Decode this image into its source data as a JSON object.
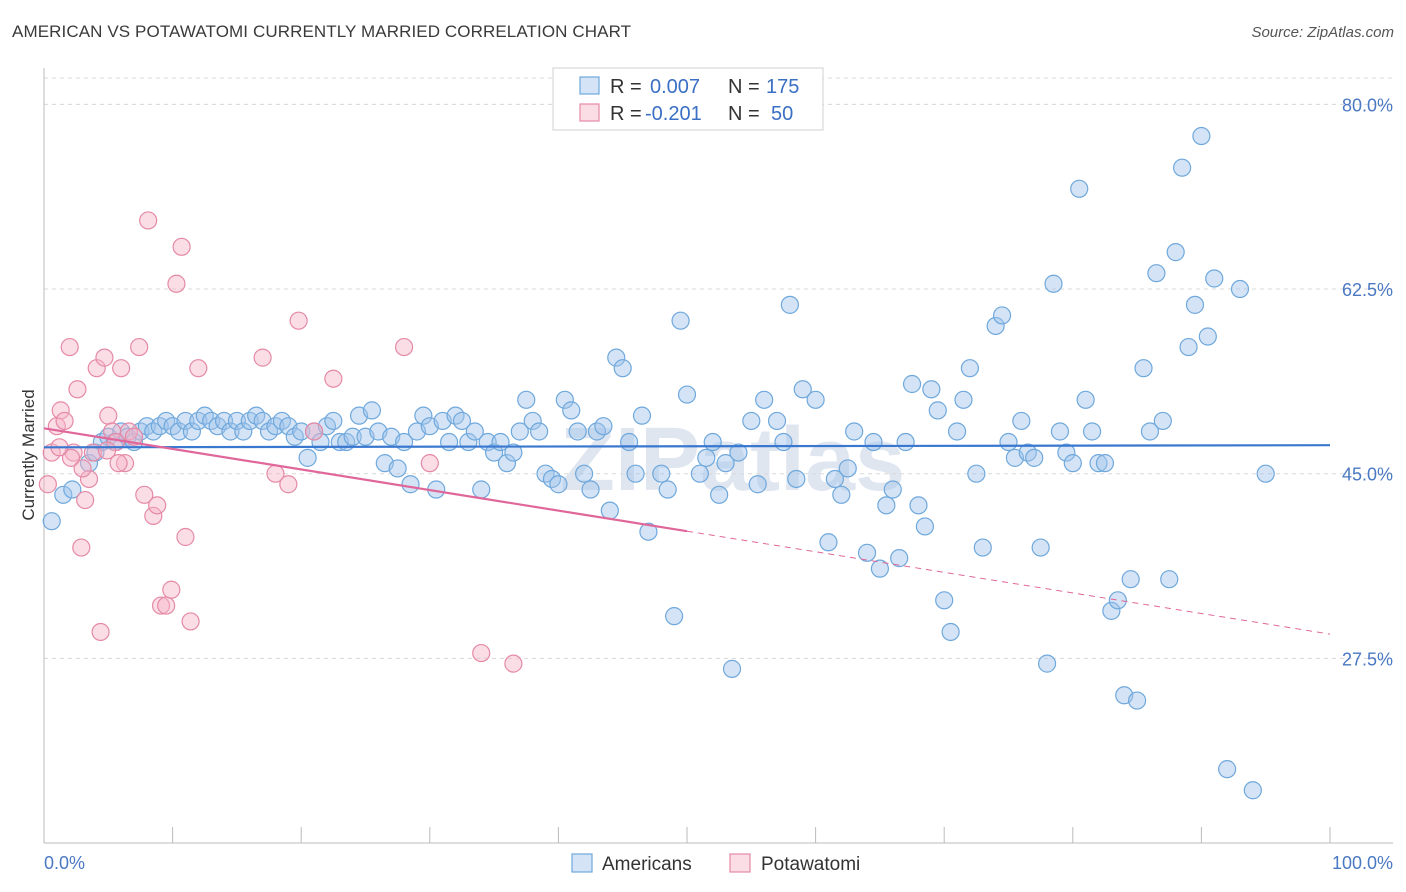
{
  "title": "AMERICAN VS POTAWATOMI CURRENTLY MARRIED CORRELATION CHART",
  "source": "Source: ZipAtlas.com",
  "watermark": "ZIPatlas",
  "colors": {
    "americans": "#6fa8dc",
    "americans_fill": "rgba(160,196,236,0.45)",
    "americans_line": "#3a78d0",
    "potawatomi": "#e58aa6",
    "potawatomi_fill": "rgba(246,180,200,0.45)",
    "potawatomi_line": "#e0679a",
    "tick_text": "#4a78c2",
    "grid": "#d8d8d8"
  },
  "legend": {
    "rows": [
      {
        "r_label": "R =",
        "r_value": "0.007",
        "n_label": "N =",
        "n_value": "175"
      },
      {
        "r_label": "R =",
        "r_value": "-0.201",
        "n_label": "N =",
        "n_value": "50"
      }
    ]
  },
  "bottom_legend": [
    "Americans",
    "Potawatomi"
  ],
  "chart_data": {
    "type": "scatter",
    "title": "AMERICAN VS POTAWATOMI CURRENTLY MARRIED CORRELATION CHART",
    "xlabel": "",
    "ylabel": "Currently Married",
    "xlim": [
      0,
      100
    ],
    "ylim": [
      10,
      82.5
    ],
    "x_tick_labels": [
      "0.0%",
      "100.0%"
    ],
    "y_ticks": [
      27.5,
      45.0,
      62.5,
      80.0
    ],
    "y_tick_labels": [
      "27.5%",
      "45.0%",
      "62.5%",
      "80.0%"
    ],
    "grid": true,
    "legend_position": "top-center",
    "series": [
      {
        "name": "Americans",
        "R": 0.007,
        "N": 175,
        "trend": {
          "x": [
            0,
            100
          ],
          "y": [
            47.5,
            47.7
          ]
        },
        "points": [
          [
            0.6,
            40.5
          ],
          [
            1.5,
            43
          ],
          [
            2.2,
            43.5
          ],
          [
            3.5,
            46
          ],
          [
            4,
            47
          ],
          [
            4.5,
            48
          ],
          [
            5,
            48.5
          ],
          [
            5.5,
            48
          ],
          [
            6,
            49
          ],
          [
            6.5,
            48.5
          ],
          [
            7,
            48
          ],
          [
            7.5,
            49
          ],
          [
            8,
            49.5
          ],
          [
            8.5,
            49
          ],
          [
            9,
            49.5
          ],
          [
            9.5,
            50
          ],
          [
            10,
            49.5
          ],
          [
            10.5,
            49
          ],
          [
            11,
            50
          ],
          [
            11.5,
            49
          ],
          [
            12,
            50
          ],
          [
            12.5,
            50.5
          ],
          [
            13,
            50
          ],
          [
            13.5,
            49.5
          ],
          [
            14,
            50
          ],
          [
            14.5,
            49
          ],
          [
            15,
            50
          ],
          [
            15.5,
            49
          ],
          [
            16,
            50
          ],
          [
            16.5,
            50.5
          ],
          [
            17,
            50
          ],
          [
            17.5,
            49
          ],
          [
            18,
            49.5
          ],
          [
            18.5,
            50
          ],
          [
            19,
            49.5
          ],
          [
            19.5,
            48.5
          ],
          [
            20,
            49
          ],
          [
            20.5,
            46.5
          ],
          [
            21,
            49
          ],
          [
            21.5,
            48
          ],
          [
            22,
            49.5
          ],
          [
            22.5,
            50
          ],
          [
            23,
            48
          ],
          [
            23.5,
            48
          ],
          [
            24,
            48.5
          ],
          [
            24.5,
            50.5
          ],
          [
            25,
            48.5
          ],
          [
            25.5,
            51
          ],
          [
            26,
            49
          ],
          [
            26.5,
            46
          ],
          [
            27,
            48.5
          ],
          [
            27.5,
            45.5
          ],
          [
            28,
            48
          ],
          [
            28.5,
            44
          ],
          [
            29,
            49
          ],
          [
            29.5,
            50.5
          ],
          [
            30,
            49.5
          ],
          [
            30.5,
            43.5
          ],
          [
            31,
            50
          ],
          [
            31.5,
            48
          ],
          [
            32,
            50.5
          ],
          [
            32.5,
            50
          ],
          [
            33,
            48
          ],
          [
            33.5,
            49
          ],
          [
            34,
            43.5
          ],
          [
            34.5,
            48
          ],
          [
            35,
            47
          ],
          [
            35.5,
            48
          ],
          [
            36,
            46
          ],
          [
            36.5,
            47
          ],
          [
            37,
            49
          ],
          [
            37.5,
            52
          ],
          [
            38,
            50
          ],
          [
            38.5,
            49
          ],
          [
            39,
            45
          ],
          [
            39.5,
            44.5
          ],
          [
            40,
            44
          ],
          [
            40.5,
            52
          ],
          [
            41,
            51
          ],
          [
            41.5,
            49
          ],
          [
            42,
            45
          ],
          [
            42.5,
            43.5
          ],
          [
            43,
            49
          ],
          [
            43.5,
            49.5
          ],
          [
            44,
            41.5
          ],
          [
            44.5,
            56
          ],
          [
            45,
            55
          ],
          [
            45.5,
            48
          ],
          [
            46,
            45
          ],
          [
            46.5,
            50.5
          ],
          [
            47,
            39.5
          ],
          [
            48,
            45
          ],
          [
            48.5,
            43.5
          ],
          [
            49,
            31.5
          ],
          [
            49.5,
            59.5
          ],
          [
            50,
            52.5
          ],
          [
            51,
            45
          ],
          [
            51.5,
            46.5
          ],
          [
            52,
            48
          ],
          [
            52.5,
            43
          ],
          [
            53,
            46
          ],
          [
            53.5,
            26.5
          ],
          [
            54,
            47
          ],
          [
            55,
            50
          ],
          [
            55.5,
            44
          ],
          [
            56,
            52
          ],
          [
            57,
            50
          ],
          [
            57.5,
            48
          ],
          [
            58,
            61
          ],
          [
            58.5,
            44.5
          ],
          [
            59,
            53
          ],
          [
            60,
            52
          ],
          [
            61,
            38.5
          ],
          [
            61.5,
            44.5
          ],
          [
            62,
            43
          ],
          [
            62.5,
            45.5
          ],
          [
            63,
            49
          ],
          [
            64,
            37.5
          ],
          [
            64.5,
            48
          ],
          [
            65,
            36
          ],
          [
            65.5,
            42
          ],
          [
            66,
            43.5
          ],
          [
            66.5,
            37
          ],
          [
            67,
            48
          ],
          [
            67.5,
            53.5
          ],
          [
            68,
            42
          ],
          [
            68.5,
            40
          ],
          [
            69,
            53
          ],
          [
            69.5,
            51
          ],
          [
            70,
            33
          ],
          [
            70.5,
            30
          ],
          [
            71,
            49
          ],
          [
            71.5,
            52
          ],
          [
            72,
            55
          ],
          [
            72.5,
            45
          ],
          [
            73,
            38
          ],
          [
            74,
            59
          ],
          [
            74.5,
            60
          ],
          [
            75,
            48
          ],
          [
            75.5,
            46.5
          ],
          [
            76,
            50
          ],
          [
            76.5,
            47
          ],
          [
            77,
            46.5
          ],
          [
            77.5,
            38
          ],
          [
            78,
            27
          ],
          [
            78.5,
            63
          ],
          [
            79,
            49
          ],
          [
            79.5,
            47
          ],
          [
            80,
            46
          ],
          [
            80.5,
            72
          ],
          [
            81,
            52
          ],
          [
            81.5,
            49
          ],
          [
            82,
            46
          ],
          [
            82.5,
            46
          ],
          [
            83,
            32
          ],
          [
            83.5,
            33
          ],
          [
            84,
            24
          ],
          [
            84.5,
            35
          ],
          [
            85,
            23.5
          ],
          [
            85.5,
            55
          ],
          [
            86,
            49
          ],
          [
            86.5,
            64
          ],
          [
            87,
            50
          ],
          [
            87.5,
            35
          ],
          [
            88,
            66
          ],
          [
            88.5,
            74
          ],
          [
            89,
            57
          ],
          [
            89.5,
            61
          ],
          [
            90,
            77
          ],
          [
            90.5,
            58
          ],
          [
            91,
            63.5
          ],
          [
            92,
            17
          ],
          [
            93,
            62.5
          ],
          [
            94,
            15
          ],
          [
            95,
            45
          ]
        ]
      },
      {
        "name": "Potawatomi",
        "R": -0.201,
        "N": 50,
        "trend": {
          "x": [
            0,
            100
          ],
          "y": [
            49.3,
            29.8
          ]
        },
        "points": [
          [
            0.3,
            44
          ],
          [
            0.6,
            47
          ],
          [
            1,
            49.5
          ],
          [
            1.3,
            51
          ],
          [
            1.6,
            50
          ],
          [
            2,
            57
          ],
          [
            2.3,
            47
          ],
          [
            2.6,
            53
          ],
          [
            2.9,
            38
          ],
          [
            3.2,
            42.5
          ],
          [
            3.5,
            44.5
          ],
          [
            3.8,
            47
          ],
          [
            4.1,
            55
          ],
          [
            4.4,
            30
          ],
          [
            4.7,
            56
          ],
          [
            5,
            50.5
          ],
          [
            5.3,
            49
          ],
          [
            5.6,
            48
          ],
          [
            6,
            55
          ],
          [
            6.3,
            46
          ],
          [
            6.6,
            49
          ],
          [
            7,
            48.5
          ],
          [
            7.4,
            57
          ],
          [
            7.8,
            43
          ],
          [
            8.1,
            69
          ],
          [
            8.5,
            41
          ],
          [
            8.8,
            42
          ],
          [
            9.1,
            32.5
          ],
          [
            9.5,
            32.5
          ],
          [
            9.9,
            34
          ],
          [
            10.3,
            63
          ],
          [
            10.7,
            66.5
          ],
          [
            11,
            39
          ],
          [
            11.4,
            31
          ],
          [
            12,
            55
          ],
          [
            17,
            56
          ],
          [
            18,
            45
          ],
          [
            19,
            44
          ],
          [
            19.8,
            59.5
          ],
          [
            21,
            49
          ],
          [
            22.5,
            54
          ],
          [
            28,
            57
          ],
          [
            30,
            46
          ],
          [
            34,
            28
          ],
          [
            36.5,
            27
          ],
          [
            3,
            45.5
          ],
          [
            5.8,
            46
          ],
          [
            2.1,
            46.5
          ],
          [
            1.2,
            47.5
          ],
          [
            4.9,
            47.2
          ]
        ]
      }
    ]
  }
}
